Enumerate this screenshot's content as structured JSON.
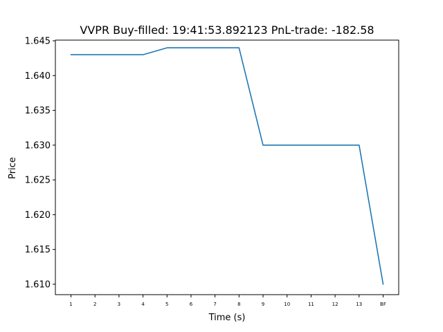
{
  "chart_data": {
    "type": "line",
    "title": "VVPR  Buy-filled:  19:41:53.892123  PnL-trade:  -182.58",
    "xlabel": "Time (s)",
    "ylabel": "Price",
    "categories": [
      "1",
      "2",
      "3",
      "4",
      "5",
      "6",
      "7",
      "8",
      "9",
      "10",
      "11",
      "12",
      "13",
      "BF"
    ],
    "series": [
      {
        "values": [
          1.643,
          1.643,
          1.643,
          1.643,
          1.644,
          1.644,
          1.644,
          1.644,
          1.63,
          1.63,
          1.63,
          1.63,
          1.63,
          1.61
        ]
      }
    ],
    "ylim": [
      1.6085,
      1.6451
    ],
    "yticks": [
      "1.610",
      "1.615",
      "1.620",
      "1.625",
      "1.630",
      "1.635",
      "1.640",
      "1.645"
    ],
    "grid": false,
    "line_color": "#1f77b4"
  }
}
